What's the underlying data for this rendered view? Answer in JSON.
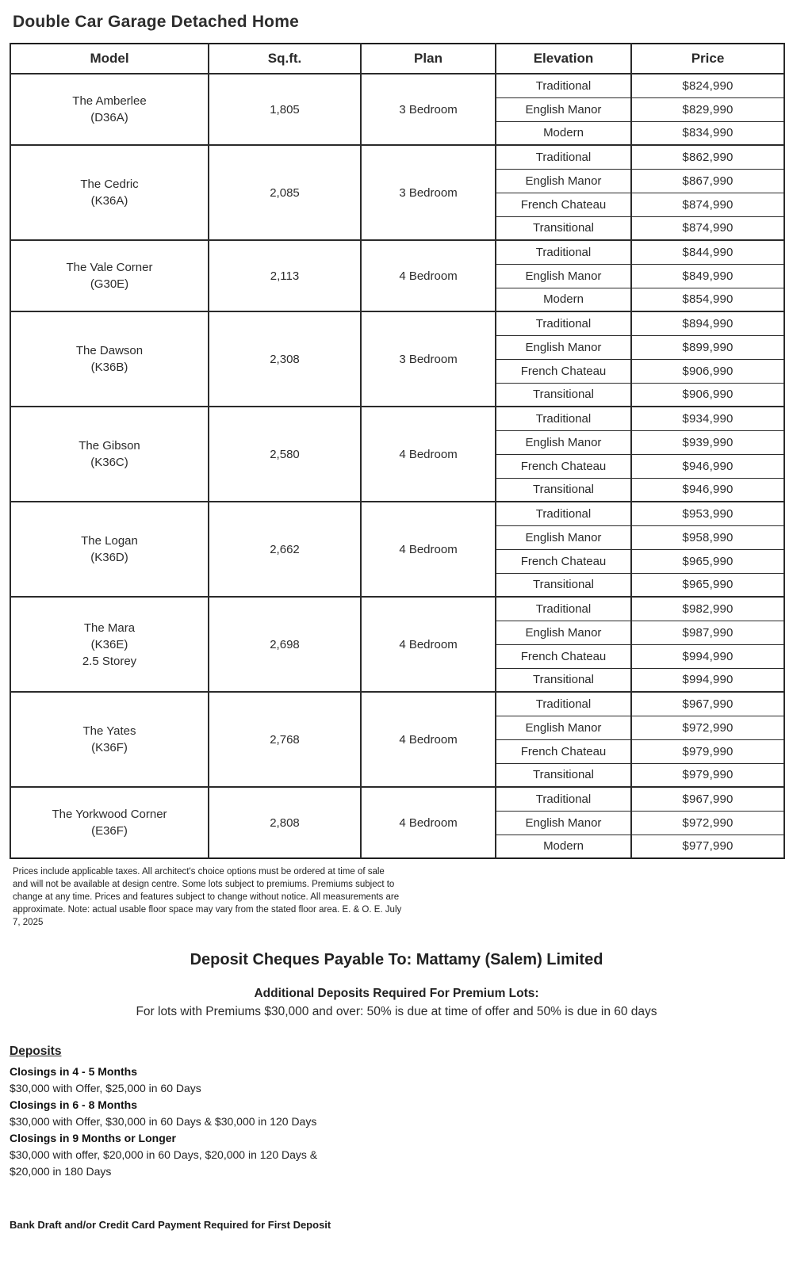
{
  "page": {
    "title": "Double Car Garage Detached Home"
  },
  "table": {
    "headers": [
      "Model",
      "Sq.ft.",
      "Plan",
      "Elevation",
      "Price"
    ],
    "models": [
      {
        "name": "The Amberlee\n(D36A)",
        "sqft": "1,805",
        "plan": "3 Bedroom",
        "elevations": [
          {
            "label": "Traditional",
            "price": "$824,990"
          },
          {
            "label": "English Manor",
            "price": "$829,990"
          },
          {
            "label": "Modern",
            "price": "$834,990"
          }
        ]
      },
      {
        "name": "The Cedric\n(K36A)",
        "sqft": "2,085",
        "plan": "3 Bedroom",
        "elevations": [
          {
            "label": "Traditional",
            "price": "$862,990"
          },
          {
            "label": "English Manor",
            "price": "$867,990"
          },
          {
            "label": "French Chateau",
            "price": "$874,990"
          },
          {
            "label": "Transitional",
            "price": "$874,990"
          }
        ]
      },
      {
        "name": "The Vale Corner\n(G30E)",
        "sqft": "2,113",
        "plan": "4 Bedroom",
        "elevations": [
          {
            "label": "Traditional",
            "price": "$844,990"
          },
          {
            "label": "English Manor",
            "price": "$849,990"
          },
          {
            "label": "Modern",
            "price": "$854,990"
          }
        ]
      },
      {
        "name": "The Dawson\n(K36B)",
        "sqft": "2,308",
        "plan": "3 Bedroom",
        "elevations": [
          {
            "label": "Traditional",
            "price": "$894,990"
          },
          {
            "label": "English Manor",
            "price": "$899,990"
          },
          {
            "label": "French Chateau",
            "price": "$906,990"
          },
          {
            "label": "Transitional",
            "price": "$906,990"
          }
        ]
      },
      {
        "name": "The Gibson\n(K36C)",
        "sqft": "2,580",
        "plan": "4 Bedroom",
        "elevations": [
          {
            "label": "Traditional",
            "price": "$934,990"
          },
          {
            "label": "English Manor",
            "price": "$939,990"
          },
          {
            "label": "French Chateau",
            "price": "$946,990"
          },
          {
            "label": "Transitional",
            "price": "$946,990"
          }
        ]
      },
      {
        "name": "The Logan\n(K36D)",
        "sqft": "2,662",
        "plan": "4 Bedroom",
        "elevations": [
          {
            "label": "Traditional",
            "price": "$953,990"
          },
          {
            "label": "English Manor",
            "price": "$958,990"
          },
          {
            "label": "French Chateau",
            "price": "$965,990"
          },
          {
            "label": "Transitional",
            "price": "$965,990"
          }
        ]
      },
      {
        "name": "The Mara\n(K36E)\n2.5 Storey",
        "sqft": "2,698",
        "plan": "4 Bedroom",
        "elevations": [
          {
            "label": "Traditional",
            "price": "$982,990"
          },
          {
            "label": "English Manor",
            "price": "$987,990"
          },
          {
            "label": "French Chateau",
            "price": "$994,990"
          },
          {
            "label": "Transitional",
            "price": "$994,990"
          }
        ]
      },
      {
        "name": "The Yates\n(K36F)",
        "sqft": "2,768",
        "plan": "4 Bedroom",
        "elevations": [
          {
            "label": "Traditional",
            "price": "$967,990"
          },
          {
            "label": "English Manor",
            "price": "$972,990"
          },
          {
            "label": "French Chateau",
            "price": "$979,990"
          },
          {
            "label": "Transitional",
            "price": "$979,990"
          }
        ]
      },
      {
        "name": "The Yorkwood Corner\n(E36F)",
        "sqft": "2,808",
        "plan": "4 Bedroom",
        "elevations": [
          {
            "label": "Traditional",
            "price": "$967,990"
          },
          {
            "label": "English Manor",
            "price": "$972,990"
          },
          {
            "label": "Modern",
            "price": "$977,990"
          }
        ]
      }
    ]
  },
  "footnote": "Prices include applicable taxes. All architect's choice options must be ordered at time of sale\nand will not be available at design centre.  Some lots subject to premiums. Premiums subject to\nchange at any time. Prices and features subject to change without notice. All measurements are\napproximate. Note: actual usable floor space may vary from the stated floor area. E. & O. E. July\n7, 2025",
  "deposits": {
    "payable_heading": "Deposit Cheques Payable To: Mattamy (Salem) Limited",
    "premium_heading": "Additional Deposits Required For Premium Lots:",
    "premium_detail": "For lots with Premiums $30,000 and over: 50% is due at time of offer and 50% is due in 60 days",
    "heading": "Deposits",
    "schedule": [
      {
        "label": "Closings in 4 - 5 Months",
        "detail": "$30,000 with Offer, $25,000 in 60 Days"
      },
      {
        "label": "Closings in 6 - 8 Months",
        "detail": "$30,000 with Offer, $30,000 in 60 Days & $30,000 in 120 Days"
      },
      {
        "label": "Closings in 9 Months or Longer",
        "detail": "$30,000 with offer, $20,000 in 60 Days, $20,000 in 120 Days &\n$20,000 in 180 Days"
      }
    ],
    "bank_note": "Bank Draft and/or Credit Card Payment Required for First Deposit"
  }
}
